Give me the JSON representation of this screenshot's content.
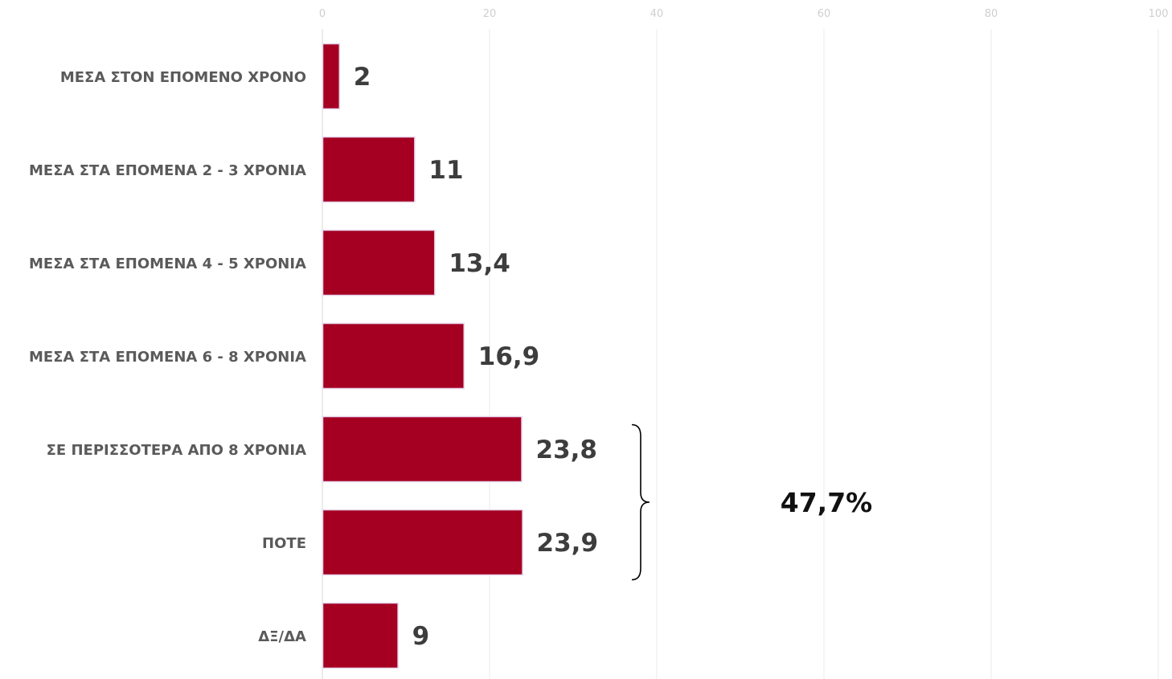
{
  "chart_data": {
    "type": "bar",
    "orientation": "horizontal",
    "categories": [
      "ΜΕΣΑ ΣΤΟΝ ΕΠΟΜΕΝΟ ΧΡΟΝΟ",
      "ΜΕΣΑ ΣΤΑ ΕΠΟΜΕΝΑ 2 - 3 ΧΡΟΝΙΑ",
      "ΜΕΣΑ ΣΤΑ ΕΠΟΜΕΝΑ 4 - 5 ΧΡΟΝΙΑ",
      "ΜΕΣΑ ΣΤΑ ΕΠΟΜΕΝΑ 6 - 8 ΧΡΟΝΙΑ",
      "ΣΕ ΠΕΡΙΣΣΟΤΕΡΑ ΑΠΟ 8 ΧΡΟΝΙΑ",
      "ΠΟΤΕ",
      "ΔΞ/ΔΑ"
    ],
    "values": [
      2,
      11,
      13.4,
      16.9,
      23.8,
      23.9,
      9
    ],
    "value_labels": [
      "2",
      "11",
      "13,4",
      "16,9",
      "23,8",
      "23,9",
      "9"
    ],
    "xlim": [
      0,
      100
    ],
    "x_ticks": [
      0,
      20,
      40,
      60,
      80,
      100
    ],
    "x_tick_labels": [
      "0",
      "20",
      "40",
      "60",
      "80",
      "100"
    ],
    "axis_position": "top",
    "grid": true,
    "legend": "none",
    "bar_color": "#a50021",
    "annotation": {
      "text": "47,7%",
      "brace_categories": [
        4,
        5
      ]
    }
  }
}
